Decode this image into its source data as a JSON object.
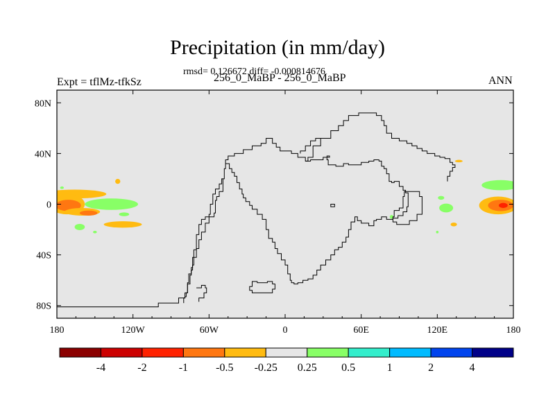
{
  "header": {
    "title": "Precipitation (in mm/day)",
    "stats": "rmsd= 0.126672 diff= -0.000814676",
    "left_label": "Expt = tflMz-tfkSz",
    "center_label": "256_0_MaBP - 256_0_MaBP",
    "right_label": "ANN"
  },
  "chart_data": {
    "type": "heatmap",
    "title": "Precipitation (in mm/day)",
    "subtitle": "256_0_MaBP - 256_0_MaBP",
    "xlabel": "",
    "ylabel": "",
    "xlim": [
      -180,
      180
    ],
    "ylim": [
      -90,
      90
    ],
    "x_ticks": [
      {
        "value": -180,
        "label": "180"
      },
      {
        "value": -120,
        "label": "120W"
      },
      {
        "value": -60,
        "label": "60W"
      },
      {
        "value": 0,
        "label": "0"
      },
      {
        "value": 60,
        "label": "60E"
      },
      {
        "value": 120,
        "label": "120E"
      },
      {
        "value": 180,
        "label": "180"
      }
    ],
    "y_ticks": [
      {
        "value": 80,
        "label": "80N"
      },
      {
        "value": 40,
        "label": "40N"
      },
      {
        "value": 0,
        "label": "0"
      },
      {
        "value": -40,
        "label": "40S"
      },
      {
        "value": -80,
        "label": "80S"
      }
    ],
    "colorbar": {
      "levels": [
        "-4",
        "-2",
        "-1",
        "-0.5",
        "-0.25",
        "0.25",
        "0.5",
        "1",
        "2",
        "4"
      ],
      "colors": [
        "#8b0000",
        "#cc0000",
        "#ff2200",
        "#ff7711",
        "#ffbb11",
        "#e6e6e6",
        "#88ff66",
        "#33eecc",
        "#00bbff",
        "#0044ee",
        "#000088"
      ]
    },
    "background_color": "#e6e6e6",
    "anomalies": [
      {
        "lon": -166,
        "lat": 8,
        "width": 50,
        "height": 7,
        "color": "#ffbb11"
      },
      {
        "lon": -172,
        "lat": 0,
        "width": 28,
        "height": 16,
        "color": "#ffbb11"
      },
      {
        "lon": -171,
        "lat": -1,
        "width": 20,
        "height": 9,
        "color": "#ff7711"
      },
      {
        "lon": -160,
        "lat": -6,
        "width": 28,
        "height": 6,
        "color": "#ffbb11"
      },
      {
        "lon": -155,
        "lat": -7,
        "width": 14,
        "height": 4,
        "color": "#ff7711"
      },
      {
        "lon": -132,
        "lat": 18,
        "width": 4,
        "height": 4,
        "color": "#ffbb11"
      },
      {
        "lon": -128,
        "lat": -16,
        "width": 30,
        "height": 5,
        "color": "#ffbb11"
      },
      {
        "lon": -137,
        "lat": 0,
        "width": 42,
        "height": 9,
        "color": "#88ff66"
      },
      {
        "lon": -127,
        "lat": -8,
        "width": 8,
        "height": 3,
        "color": "#88ff66"
      },
      {
        "lon": -162,
        "lat": -18,
        "width": 8,
        "height": 5,
        "color": "#88ff66"
      },
      {
        "lon": -150,
        "lat": -22,
        "width": 3,
        "height": 2,
        "color": "#88ff66"
      },
      {
        "lon": -176,
        "lat": 13,
        "width": 3,
        "height": 2,
        "color": "#88ff66"
      },
      {
        "lon": 168,
        "lat": -1,
        "width": 30,
        "height": 14,
        "color": "#ffbb11"
      },
      {
        "lon": 170,
        "lat": -1,
        "width": 20,
        "height": 9,
        "color": "#ff7711"
      },
      {
        "lon": 172,
        "lat": -1,
        "width": 7,
        "height": 4,
        "color": "#ff2200"
      },
      {
        "lon": 170,
        "lat": 15,
        "width": 30,
        "height": 8,
        "color": "#88ff66"
      },
      {
        "lon": 127,
        "lat": -3,
        "width": 11,
        "height": 7,
        "color": "#88ff66"
      },
      {
        "lon": 123,
        "lat": 5,
        "width": 5,
        "height": 3,
        "color": "#88ff66"
      },
      {
        "lon": 137,
        "lat": 34,
        "width": 6,
        "height": 2,
        "color": "#ffbb11"
      },
      {
        "lon": 133,
        "lat": -16,
        "width": 5,
        "height": 3,
        "color": "#ffbb11"
      },
      {
        "lon": 84,
        "lat": -10,
        "width": 3,
        "height": 3,
        "color": "#88ff66"
      },
      {
        "lon": 120,
        "lat": -22,
        "width": 2,
        "height": 2,
        "color": "#88ff66"
      }
    ],
    "coastlines": [
      {
        "name": "americas",
        "closed": false,
        "points": [
          [
            -180,
            -81
          ],
          [
            -100,
            -81
          ],
          [
            -100,
            -78
          ],
          [
            -85,
            -78
          ],
          [
            -84,
            -74
          ],
          [
            -79,
            -73
          ],
          [
            -78,
            -70
          ],
          [
            -77,
            -62
          ],
          [
            -76,
            -55
          ],
          [
            -74,
            -50
          ],
          [
            -73,
            -42
          ],
          [
            -72,
            -36
          ],
          [
            -70,
            -30
          ],
          [
            -70,
            -24
          ],
          [
            -68,
            -16
          ],
          [
            -66,
            -12
          ],
          [
            -63,
            -10
          ],
          [
            -58,
            -10
          ],
          [
            -56,
            -7
          ],
          [
            -55,
            -3
          ],
          [
            -55,
            3
          ],
          [
            -54,
            6
          ],
          [
            -52,
            10
          ],
          [
            -49,
            20
          ],
          [
            -48,
            28
          ],
          [
            -47,
            35
          ],
          [
            -45,
            38
          ],
          [
            -40,
            40
          ],
          [
            -33,
            43
          ],
          [
            -26,
            46
          ],
          [
            -19,
            48
          ],
          [
            -15,
            52
          ],
          [
            -10,
            48
          ],
          [
            -7,
            45
          ],
          [
            -4,
            42
          ],
          [
            5,
            40
          ],
          [
            10,
            37
          ],
          [
            12,
            37
          ],
          [
            16,
            34
          ],
          [
            20,
            35
          ],
          [
            24,
            35
          ],
          [
            30,
            37
          ],
          [
            35,
            38
          ],
          [
            33,
            35
          ],
          [
            34,
            31
          ],
          [
            40,
            30
          ],
          [
            46,
            32
          ],
          [
            50,
            31
          ],
          [
            55,
            31
          ],
          [
            60,
            33
          ],
          [
            66,
            34
          ],
          [
            70,
            35
          ],
          [
            74,
            34
          ],
          [
            76,
            30
          ],
          [
            78,
            28
          ],
          [
            80,
            24
          ],
          [
            82,
            18
          ],
          [
            84,
            17
          ],
          [
            86,
            18
          ],
          [
            90,
            14
          ],
          [
            93,
            11
          ],
          [
            95,
            9
          ],
          [
            97,
            5
          ],
          [
            97,
            -2
          ],
          [
            96,
            -6
          ],
          [
            93,
            -9
          ],
          [
            89,
            -11
          ],
          [
            85,
            -12
          ],
          [
            80,
            -10
          ],
          [
            76,
            -12
          ],
          [
            72,
            -13
          ],
          [
            70,
            -17
          ],
          [
            66,
            -15
          ],
          [
            60,
            -13
          ],
          [
            57,
            -10
          ],
          [
            55,
            -14
          ],
          [
            52,
            -20
          ],
          [
            50,
            -26
          ],
          [
            48,
            -30
          ],
          [
            45,
            -34
          ],
          [
            42,
            -36
          ],
          [
            39,
            -40
          ],
          [
            36,
            -44
          ],
          [
            32,
            -48
          ],
          [
            28,
            -52
          ],
          [
            25,
            -56
          ],
          [
            22,
            -59
          ],
          [
            18,
            -60
          ],
          [
            14,
            -62
          ],
          [
            10,
            -63
          ],
          [
            7,
            -62
          ],
          [
            5,
            -60
          ],
          [
            4,
            -55
          ],
          [
            2,
            -48
          ],
          [
            0,
            -44
          ],
          [
            -3,
            -39
          ],
          [
            -6,
            -35
          ],
          [
            -8,
            -30
          ],
          [
            -10,
            -27
          ],
          [
            -13,
            -20
          ],
          [
            -15,
            -12
          ],
          [
            -18,
            -8
          ],
          [
            -22,
            -4
          ],
          [
            -26,
            -1
          ],
          [
            -28,
            2
          ],
          [
            -31,
            5
          ],
          [
            -33,
            8
          ],
          [
            -34,
            12
          ],
          [
            -36,
            17
          ],
          [
            -38,
            22
          ],
          [
            -40,
            25
          ],
          [
            -42,
            28
          ],
          [
            -44,
            32
          ],
          [
            -47,
            35
          ]
        ]
      },
      {
        "name": "americas-west",
        "closed": false,
        "points": [
          [
            -49,
            20
          ],
          [
            -50,
            16
          ],
          [
            -52,
            12
          ],
          [
            -55,
            8
          ],
          [
            -57,
            0
          ],
          [
            -59,
            -8
          ],
          [
            -60,
            -15
          ],
          [
            -63,
            -22
          ],
          [
            -66,
            -28
          ],
          [
            -68,
            -35
          ],
          [
            -70,
            -42
          ],
          [
            -72,
            -48
          ],
          [
            -73,
            -52
          ],
          [
            -74,
            -56
          ],
          [
            -75,
            -63
          ],
          [
            -77,
            -70
          ],
          [
            -79,
            -74
          ],
          [
            -80,
            -78
          ]
        ]
      },
      {
        "name": "east-highlands",
        "closed": false,
        "points": [
          [
            16,
            34
          ],
          [
            18,
            37
          ],
          [
            22,
            46
          ],
          [
            28,
            52
          ],
          [
            36,
            58
          ],
          [
            42,
            62
          ],
          [
            46,
            66
          ],
          [
            50,
            70
          ],
          [
            58,
            72
          ],
          [
            66,
            72
          ],
          [
            72,
            70
          ],
          [
            76,
            66
          ],
          [
            78,
            62
          ],
          [
            80,
            56
          ],
          [
            84,
            52
          ],
          [
            90,
            50
          ],
          [
            96,
            48
          ],
          [
            100,
            46
          ],
          [
            104,
            44
          ],
          [
            108,
            42
          ],
          [
            112,
            40
          ],
          [
            118,
            38
          ],
          [
            122,
            37
          ],
          [
            126,
            36
          ],
          [
            130,
            33
          ],
          [
            132,
            31
          ],
          [
            134,
            29
          ],
          [
            132,
            26
          ],
          [
            130,
            22
          ],
          [
            128,
            18
          ]
        ]
      },
      {
        "name": "rift-basin",
        "closed": false,
        "points": [
          [
            28,
            52
          ],
          [
            24,
            50
          ],
          [
            20,
            46
          ],
          [
            16,
            42
          ],
          [
            12,
            40
          ]
        ]
      },
      {
        "name": "antarctic-island",
        "closed": true,
        "points": [
          [
            -26,
            -61
          ],
          [
            -22,
            -62
          ],
          [
            -14,
            -61
          ],
          [
            -10,
            -63
          ],
          [
            -8,
            -67
          ],
          [
            -10,
            -70
          ],
          [
            -15,
            -70
          ],
          [
            -22,
            -70
          ],
          [
            -26,
            -68
          ],
          [
            -28,
            -65
          ]
        ]
      },
      {
        "name": "inner-ring",
        "closed": true,
        "points": [
          [
            94,
            10
          ],
          [
            102,
            10
          ],
          [
            106,
            6
          ],
          [
            108,
            0
          ],
          [
            108,
            -8
          ],
          [
            104,
            -13
          ],
          [
            98,
            -16
          ],
          [
            92,
            -16
          ],
          [
            88,
            -14
          ],
          [
            85,
            -10
          ],
          [
            86,
            -5
          ],
          [
            90,
            -3
          ],
          [
            93,
            1
          ],
          [
            93,
            6
          ]
        ]
      },
      {
        "name": "west-lake",
        "closed": true,
        "points": [
          [
            36,
            0
          ],
          [
            39,
            0
          ],
          [
            39,
            -2
          ],
          [
            36,
            -2
          ]
        ]
      },
      {
        "name": "ant-margin",
        "closed": false,
        "points": [
          [
            -70,
            -66
          ],
          [
            -66,
            -64
          ],
          [
            -63,
            -66
          ],
          [
            -62,
            -70
          ],
          [
            -64,
            -74
          ],
          [
            -68,
            -77
          ]
        ]
      }
    ]
  }
}
